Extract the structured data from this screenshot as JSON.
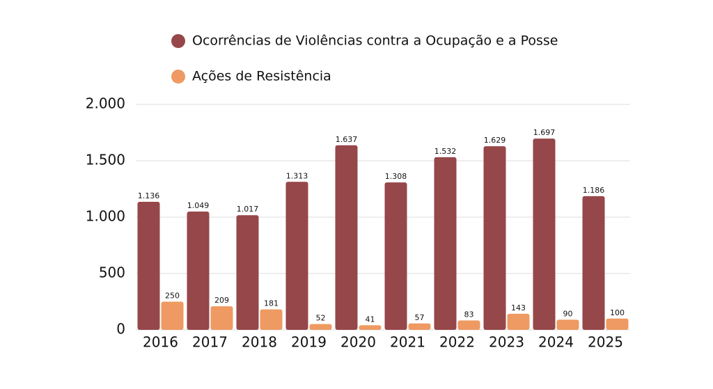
{
  "chart_data": {
    "type": "bar",
    "categories": [
      "2016",
      "2017",
      "2018",
      "2019",
      "2020",
      "2021",
      "2022",
      "2023",
      "2024",
      "2025"
    ],
    "series": [
      {
        "name": "Ocorrências de Violências contra a Ocupação e a Posse",
        "color": "#96474a",
        "values": [
          1136,
          1049,
          1017,
          1313,
          1637,
          1308,
          1532,
          1629,
          1697,
          1186
        ],
        "value_labels": [
          "1.136",
          "1.049",
          "1.017",
          "1.313",
          "1.637",
          "1.308",
          "1.532",
          "1.629",
          "1.697",
          "1.186"
        ]
      },
      {
        "name": "Ações de Resistência",
        "color": "#ee9a62",
        "values": [
          250,
          209,
          181,
          52,
          41,
          57,
          83,
          143,
          90,
          100
        ]
      }
    ],
    "ylim": [
      0,
      2000
    ],
    "yticks": [
      0,
      500,
      {
        "value": 1000,
        "label": "1.000"
      },
      {
        "value": 1500,
        "label": "1.500"
      },
      {
        "value": 2000,
        "label": "2.000"
      }
    ],
    "grid": true,
    "legend": "top"
  }
}
